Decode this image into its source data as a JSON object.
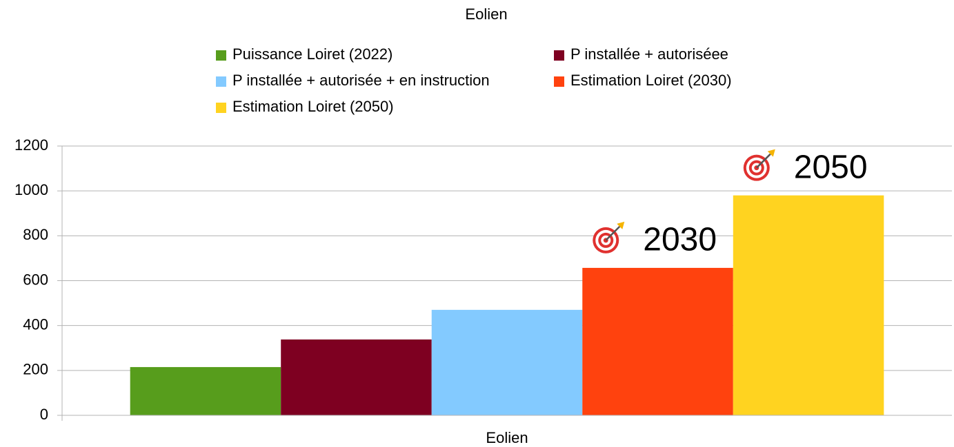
{
  "chart_data": {
    "type": "bar",
    "title": "Eolien",
    "categories": [
      "Eolien"
    ],
    "series": [
      {
        "name": "Puissance Loiret (2022)",
        "color": "#579d1c",
        "values": [
          215
        ]
      },
      {
        "name": "P installée + autoriséee",
        "color": "#7e0021",
        "values": [
          338
        ]
      },
      {
        "name": "P installée + autorisée + en instruction",
        "color": "#83caff",
        "values": [
          470
        ]
      },
      {
        "name": "Estimation Loiret (2030)",
        "color": "#ff420e",
        "values": [
          657
        ]
      },
      {
        "name": "Estimation Loiret (2050)",
        "color": "#ffd320",
        "values": [
          980
        ]
      }
    ],
    "annotations": [
      "2030",
      "2050"
    ],
    "ylim": [
      0,
      1200
    ],
    "yticks": [
      0,
      200,
      400,
      600,
      800,
      1000,
      1200
    ],
    "grid": true,
    "legend": "top"
  }
}
